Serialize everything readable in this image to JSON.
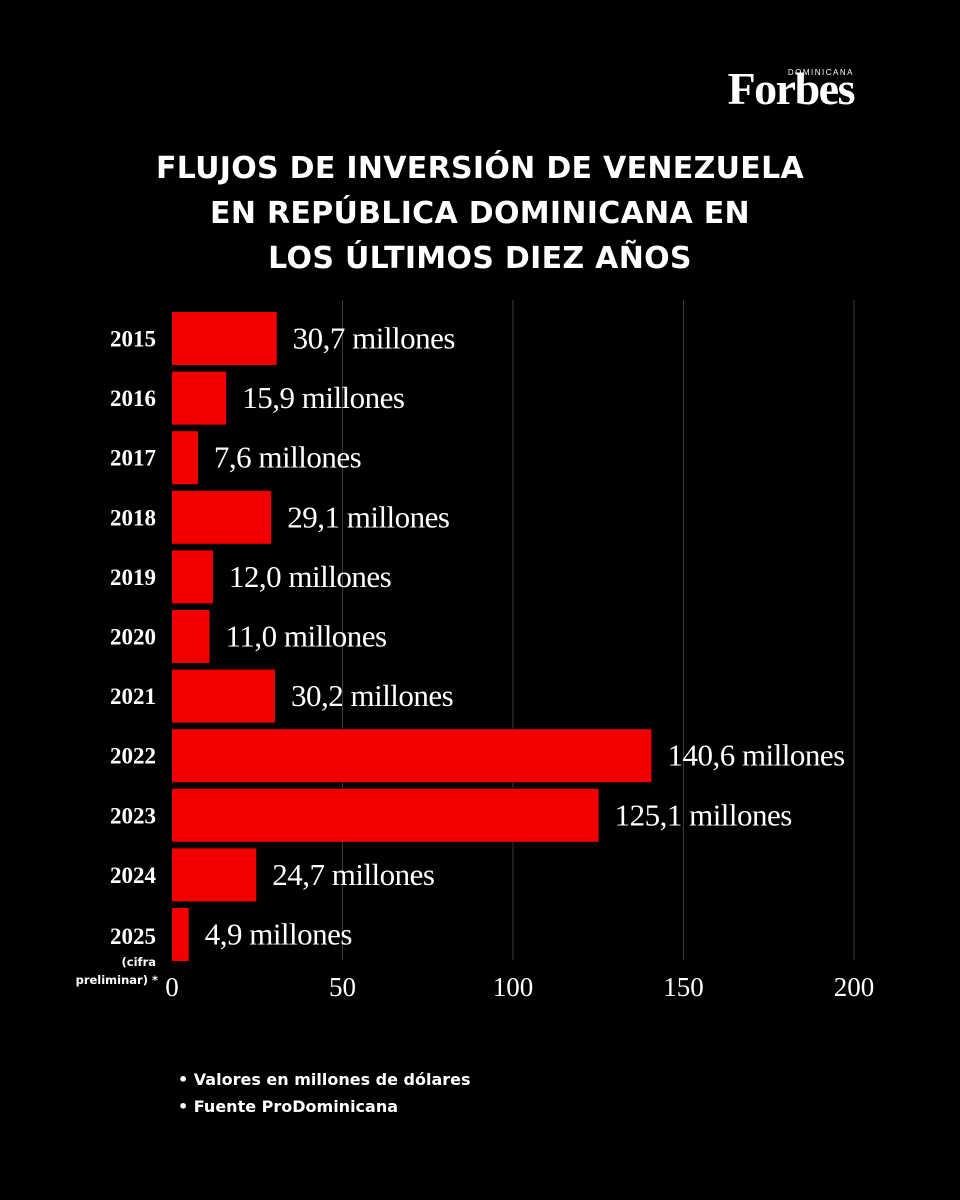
{
  "brand": {
    "name": "Forbes",
    "edition": "DOMINICANA"
  },
  "title_lines": [
    "FLUJOS DE INVERSIÓN DE VENEZUELA",
    "EN REPÚBLICA DOMINICANA EN",
    "LOS ÚLTIMOS DIEZ AÑOS"
  ],
  "notes": [
    "• Valores en millones de dólares",
    "• Fuente ProDominicana"
  ],
  "colors": {
    "bar": "#f20000",
    "background": "#000000",
    "grid": "#3a3a3a",
    "text": "#ffffff"
  },
  "chart_data": {
    "type": "bar",
    "orientation": "horizontal",
    "title": "FLUJOS DE INVERSIÓN DE VENEZUELA EN REPÚBLICA DOMINICANA EN LOS ÚLTIMOS DIEZ AÑOS",
    "categories": [
      "2015",
      "2016",
      "2017",
      "2018",
      "2019",
      "2020",
      "2021",
      "2022",
      "2023",
      "2024",
      "2025"
    ],
    "category_sublabels": [
      "",
      "",
      "",
      "",
      "",
      "",
      "",
      "",
      "",
      "",
      "(cifra preliminar) *"
    ],
    "values": [
      30.7,
      15.9,
      7.6,
      29.1,
      12.0,
      11.0,
      30.2,
      140.6,
      125.1,
      24.7,
      4.9
    ],
    "data_labels": [
      "30,7 millones",
      "15,9 millones",
      "7,6 millones",
      "29,1 millones",
      "12,0 millones",
      "11,0 millones",
      "30,2 millones",
      "140,6 millones",
      "125,1 millones",
      "24,7 millones",
      "4,9 millones"
    ],
    "xlim": [
      0,
      200
    ],
    "xticks": [
      0,
      50,
      100,
      150,
      200
    ],
    "xtick_labels": [
      "0",
      "50",
      "100",
      "150",
      "200"
    ],
    "grid": true
  }
}
